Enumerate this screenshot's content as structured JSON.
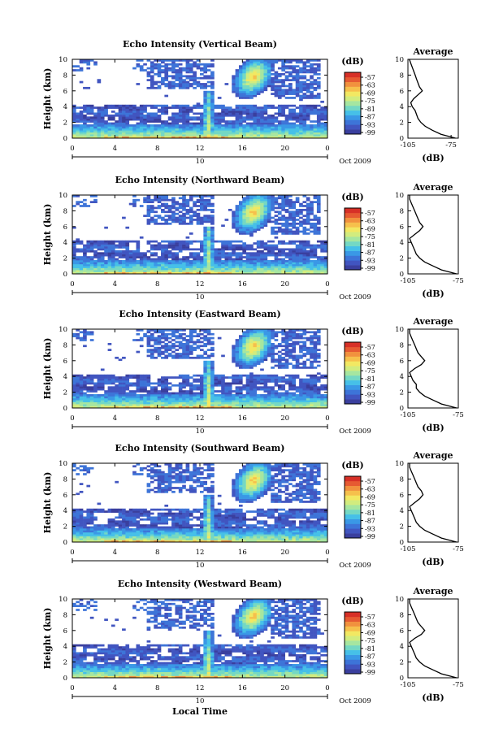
{
  "figure": {
    "xlabel_bottom": "Local Time",
    "date_label": "Oct 2009",
    "day_label": "10",
    "colorbar_unit": "(dB)",
    "avg_title": "Average",
    "avg_xlabel": "(dB)"
  },
  "colormap": [
    "#3a3f9e",
    "#4155c0",
    "#3d74d8",
    "#3a98e6",
    "#46c0e8",
    "#74d8c4",
    "#a6e6a0",
    "#d2ec7e",
    "#f2e862",
    "#f6c04c",
    "#f1913e",
    "#e65a32",
    "#d73027"
  ],
  "chart_data": [
    {
      "type": "heatmap",
      "title": "Echo Intensity (Vertical Beam)",
      "ylabel": "Height (km)",
      "xlim": [
        0,
        24
      ],
      "ylim": [
        0,
        10
      ],
      "xticks": [
        "0",
        "4",
        "8",
        "12",
        "16",
        "20",
        "0"
      ],
      "yticks": [
        "0",
        "2",
        "4",
        "6",
        "8",
        "10"
      ],
      "colorbar": {
        "unit": "(dB)",
        "labels": [
          "-57",
          "-63",
          "-69",
          "-75",
          "-81",
          "-87",
          "-93",
          "-99"
        ]
      },
      "average_profile": {
        "title": "Average",
        "xlabel": "(dB)",
        "xlim": [
          -105,
          -70
        ],
        "xticks": [
          "-105",
          "-75"
        ],
        "yticks": [
          "0",
          "2",
          "4",
          "6",
          "8",
          "10"
        ],
        "height_km": [
          0,
          0.5,
          1,
          1.5,
          2,
          2.5,
          3,
          3.5,
          4,
          4.5,
          5,
          5.5,
          6,
          6.5,
          7,
          7.5,
          8,
          8.5,
          9,
          9.5,
          10
        ],
        "value_db": [
          -72,
          -82,
          -88,
          -93,
          -96,
          -98,
          -99,
          -100,
          -102,
          -103,
          -101,
          -98,
          -95,
          -97,
          -98,
          -99,
          -100,
          -101,
          -102,
          -103,
          -104
        ]
      }
    },
    {
      "type": "heatmap",
      "title": "Echo Intensity (Northward Beam)",
      "ylabel": "Height (km)",
      "xlim": [
        0,
        24
      ],
      "ylim": [
        0,
        10
      ],
      "xticks": [
        "0",
        "4",
        "8",
        "12",
        "16",
        "20",
        "0"
      ],
      "yticks": [
        "0",
        "2",
        "4",
        "6",
        "8",
        "10"
      ],
      "colorbar": {
        "unit": "(dB)",
        "labels": [
          "-57",
          "-63",
          "-69",
          "-75",
          "-81",
          "-87",
          "-93",
          "-99"
        ]
      },
      "average_profile": {
        "title": "Average",
        "xlabel": "(dB)",
        "xlim": [
          -105,
          -75
        ],
        "xticks": [
          "-105",
          "-75"
        ],
        "yticks": [
          "0",
          "2",
          "4",
          "6",
          "8",
          "10"
        ],
        "height_km": [
          0,
          0.5,
          1,
          1.5,
          2,
          2.5,
          3,
          3.5,
          4,
          4.5,
          5,
          5.5,
          6,
          6.5,
          7,
          7.5,
          8,
          8.5,
          9,
          9.5,
          10
        ],
        "value_db": [
          -76,
          -85,
          -90,
          -95,
          -98,
          -100,
          -101,
          -102,
          -103,
          -104,
          -101,
          -98,
          -96,
          -98,
          -99,
          -100,
          -101,
          -102,
          -103,
          -104,
          -104
        ]
      }
    },
    {
      "type": "heatmap",
      "title": "Echo Intensity (Eastward Beam)",
      "ylabel": "Height (km)",
      "xlim": [
        0,
        24
      ],
      "ylim": [
        0,
        10
      ],
      "xticks": [
        "0",
        "4",
        "8",
        "12",
        "16",
        "20",
        "0"
      ],
      "yticks": [
        "0",
        "2",
        "4",
        "6",
        "8",
        "10"
      ],
      "colorbar": {
        "unit": "(dB)",
        "labels": [
          "-57",
          "-63",
          "-69",
          "-75",
          "-81",
          "-87",
          "-93",
          "-99"
        ]
      },
      "average_profile": {
        "title": "Average",
        "xlabel": "(dB)",
        "xlim": [
          -105,
          -75
        ],
        "xticks": [
          "-105",
          "-75"
        ],
        "yticks": [
          "0",
          "2",
          "4",
          "6",
          "8",
          "10"
        ],
        "height_km": [
          0,
          0.5,
          1,
          1.5,
          2,
          2.5,
          3,
          3.5,
          4,
          4.5,
          5,
          5.5,
          6,
          6.5,
          7,
          7.5,
          8,
          8.5,
          9,
          9.5,
          10
        ],
        "value_db": [
          -76,
          -85,
          -90,
          -95,
          -98,
          -100,
          -100,
          -102,
          -103,
          -104,
          -101,
          -97,
          -95,
          -97,
          -99,
          -100,
          -101,
          -102,
          -103,
          -104,
          -104
        ]
      }
    },
    {
      "type": "heatmap",
      "title": "Echo Intensity (Southward Beam)",
      "ylabel": "Height (km)",
      "xlim": [
        0,
        24
      ],
      "ylim": [
        0,
        10
      ],
      "xticks": [
        "0",
        "4",
        "8",
        "12",
        "16",
        "20",
        "0"
      ],
      "yticks": [
        "0",
        "2",
        "4",
        "6",
        "8",
        "10"
      ],
      "colorbar": {
        "unit": "(dB)",
        "labels": [
          "-57",
          "-63",
          "-69",
          "-75",
          "-81",
          "-87",
          "-93",
          "-99"
        ]
      },
      "average_profile": {
        "title": "Average",
        "xlabel": "(dB)",
        "xlim": [
          -105,
          -75
        ],
        "xticks": [
          "-105",
          "-75"
        ],
        "yticks": [
          "0",
          "2",
          "4",
          "6",
          "8",
          "10"
        ],
        "height_km": [
          0,
          0.5,
          1,
          1.5,
          2,
          2.5,
          3,
          3.5,
          4,
          4.5,
          5,
          5.5,
          6,
          6.5,
          7,
          7.5,
          8,
          8.5,
          9,
          9.5,
          10
        ],
        "value_db": [
          -76,
          -85,
          -90,
          -95,
          -98,
          -100,
          -101,
          -102,
          -103,
          -104,
          -101,
          -98,
          -96,
          -97,
          -99,
          -100,
          -101,
          -102,
          -103,
          -104,
          -104
        ]
      }
    },
    {
      "type": "heatmap",
      "title": "Echo Intensity (Westward Beam)",
      "ylabel": "Height (km)",
      "xlim": [
        0,
        24
      ],
      "ylim": [
        0,
        10
      ],
      "xticks": [
        "0",
        "4",
        "8",
        "12",
        "16",
        "20",
        "0"
      ],
      "yticks": [
        "0",
        "2",
        "4",
        "6",
        "8",
        "10"
      ],
      "colorbar": {
        "unit": "(dB)",
        "labels": [
          "-57",
          "-63",
          "-69",
          "-75",
          "-81",
          "-87",
          "-93",
          "-99"
        ]
      },
      "average_profile": {
        "title": "Average",
        "xlabel": "(dB)",
        "xlim": [
          -105,
          -75
        ],
        "xticks": [
          "-105",
          "-75"
        ],
        "yticks": [
          "0",
          "2",
          "4",
          "6",
          "8",
          "10"
        ],
        "height_km": [
          0,
          0.5,
          1,
          1.5,
          2,
          2.5,
          3,
          3.5,
          4,
          4.5,
          5,
          5.5,
          6,
          6.5,
          7,
          7.5,
          8,
          8.5,
          9,
          9.5,
          10
        ],
        "value_db": [
          -76,
          -85,
          -90,
          -95,
          -98,
          -100,
          -101,
          -102,
          -103,
          -104,
          -101,
          -97,
          -95,
          -97,
          -99,
          -100,
          -101,
          -102,
          -103,
          -104,
          -104
        ]
      }
    }
  ]
}
